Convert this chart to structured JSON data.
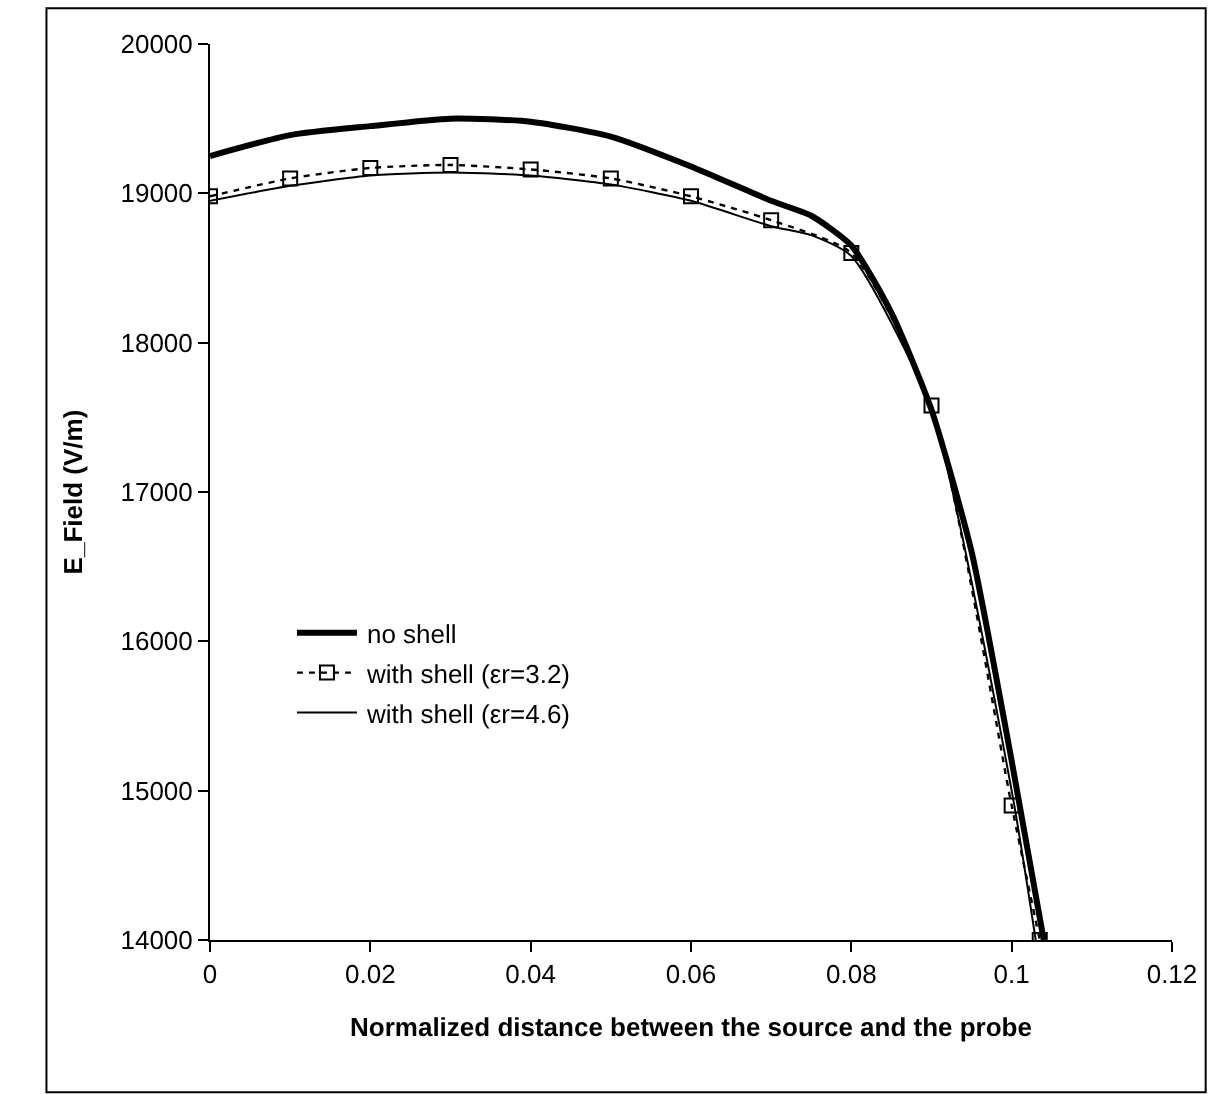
{
  "chart_data": {
    "type": "line",
    "xlabel": "Normalized distance between the source and the probe",
    "ylabel": "E_Field (V/m)",
    "xlim": [
      0,
      0.12
    ],
    "xticks": [
      0,
      0.02,
      0.04,
      0.06,
      0.08,
      0.1,
      0.12
    ],
    "ylim": [
      14000,
      20000
    ],
    "yticks": [
      14000,
      15000,
      16000,
      17000,
      18000,
      19000,
      20000
    ],
    "legend": "bottom left",
    "series": [
      {
        "name": "no shell",
        "color": "#000000",
        "line_style": "solid",
        "marker": "none",
        "x": [
          0,
          0.01,
          0.02,
          0.03,
          0.04,
          0.05,
          0.06,
          0.07,
          0.075,
          0.08,
          0.085,
          0.09,
          0.095,
          0.1,
          0.104
        ],
        "values": [
          19250,
          19390,
          19450,
          19500,
          19480,
          19380,
          19180,
          18950,
          18850,
          18650,
          18200,
          17550,
          16600,
          15200,
          14000
        ]
      },
      {
        "name": "with shell (εr=3.2)",
        "color": "#000000",
        "line_style": "dotted",
        "marker": "square",
        "x": [
          0,
          0.01,
          0.02,
          0.03,
          0.04,
          0.05,
          0.06,
          0.07,
          0.08,
          0.09,
          0.1,
          0.1035
        ],
        "values": [
          18980,
          19100,
          19170,
          19190,
          19160,
          19100,
          18980,
          18820,
          18600,
          17580,
          14900,
          14000
        ]
      },
      {
        "name": "with shell (εr=4.6)",
        "color": "#000000",
        "line_style": "solid",
        "marker": "none",
        "x": [
          0,
          0.01,
          0.02,
          0.03,
          0.04,
          0.05,
          0.06,
          0.07,
          0.075,
          0.08,
          0.09,
          0.1,
          0.103
        ],
        "values": [
          18950,
          19050,
          19120,
          19140,
          19120,
          19060,
          18950,
          18780,
          18720,
          18580,
          17550,
          15000,
          14000
        ]
      }
    ]
  }
}
